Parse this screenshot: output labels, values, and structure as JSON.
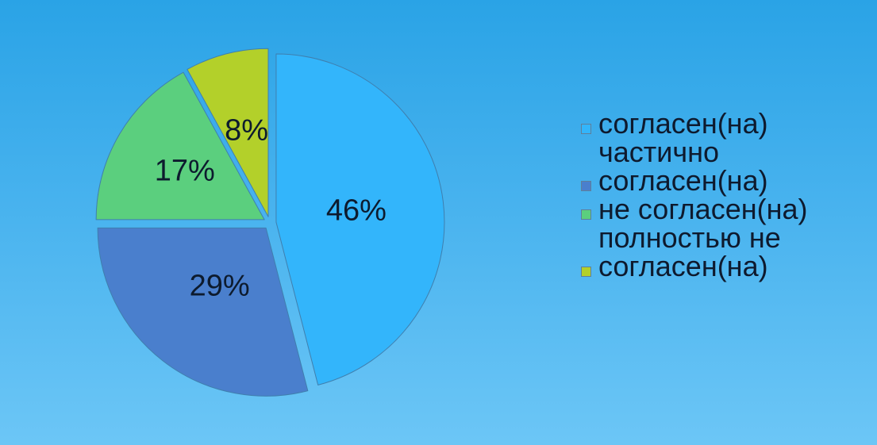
{
  "chart_data": {
    "type": "pie",
    "exploded": true,
    "categories": [
      "согласен(на)",
      "частично согласен(на)",
      "не согласен(на)",
      "полностью не согласен(на)"
    ],
    "values": [
      46,
      29,
      17,
      8
    ],
    "labels": [
      "46%",
      "29%",
      "17%",
      "8%"
    ],
    "colors": [
      "#33b5fb",
      "#4a7fcd",
      "#5bcf7e",
      "#b3d02a"
    ],
    "legend_position": "right"
  }
}
